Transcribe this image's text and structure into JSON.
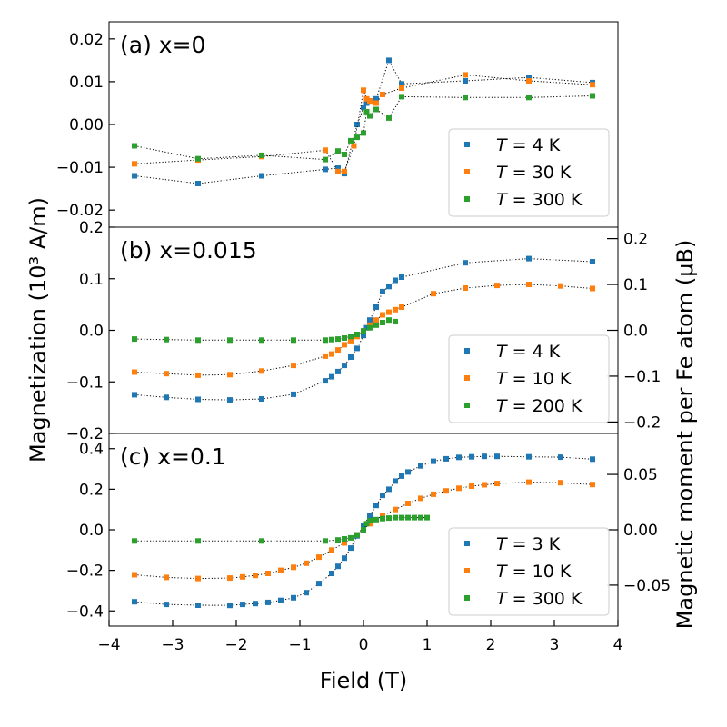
{
  "figure": {
    "ylabel_left": "Magnetization (10³ A/m)",
    "ylabel_right": "Magnetic moment per Fe atom (μB)",
    "xlabel": "Field (T)",
    "x_ticks": [
      "−4",
      "−3",
      "−2",
      "−1",
      "0",
      "1",
      "2",
      "3",
      "4"
    ],
    "series_colors": [
      "#1f77b4",
      "#ff7f0e",
      "#2ca02c"
    ]
  },
  "chart_data": [
    {
      "type": "scatter",
      "panel_label": "(a) x=0",
      "xlim": [
        -4,
        4
      ],
      "ylim": [
        -0.024,
        0.024
      ],
      "y_ticks": [
        -0.02,
        -0.01,
        0.0,
        0.01,
        0.02
      ],
      "y_tick_labels": [
        "−0.02",
        "−0.01",
        "0.00",
        "0.01",
        "0.02"
      ],
      "legend_position": "lower-right",
      "series": [
        {
          "name": "T = 4 K",
          "legend_T": "4 K",
          "x": [
            -3.6,
            -2.6,
            -1.6,
            -0.6,
            -0.4,
            -0.3,
            -0.1,
            0.0,
            0.05,
            0.1,
            0.2,
            0.4,
            0.6,
            1.6,
            2.6,
            3.6
          ],
          "y": [
            -0.012,
            -0.0138,
            -0.012,
            -0.0105,
            -0.0102,
            -0.0115,
            0.0,
            0.004,
            0.005,
            0.0055,
            0.006,
            0.015,
            0.0095,
            0.0102,
            0.011,
            0.0098
          ]
        },
        {
          "name": "T = 30 K",
          "legend_T": "30 K",
          "x": [
            -3.6,
            -2.6,
            -1.6,
            -0.6,
            -0.4,
            -0.3,
            -0.15,
            0.0,
            0.05,
            0.1,
            0.2,
            0.3,
            0.6,
            1.6,
            2.6,
            3.6
          ],
          "y": [
            -0.0092,
            -0.0083,
            -0.0075,
            -0.006,
            -0.011,
            -0.011,
            -0.005,
            0.008,
            0.006,
            0.0055,
            0.005,
            0.007,
            0.0085,
            0.0116,
            0.0102,
            0.0093
          ]
        },
        {
          "name": "T = 300 K",
          "legend_T": "300 K",
          "x": [
            -3.6,
            -2.6,
            -1.6,
            -0.6,
            -0.4,
            -0.3,
            -0.2,
            -0.1,
            0.0,
            0.05,
            0.1,
            0.2,
            0.4,
            0.6,
            1.6,
            2.6,
            3.6
          ],
          "y": [
            -0.005,
            -0.008,
            -0.0072,
            -0.0082,
            -0.0062,
            -0.007,
            -0.0038,
            -0.003,
            -0.002,
            0.003,
            0.002,
            0.0035,
            0.0015,
            0.0065,
            0.0063,
            0.0063,
            0.0067
          ]
        }
      ]
    },
    {
      "type": "scatter",
      "panel_label": "(b) x=0.015",
      "xlim": [
        -4,
        4
      ],
      "ylim": [
        -0.2,
        0.2
      ],
      "y_ticks": [
        -0.2,
        -0.1,
        0.0,
        0.1,
        0.2
      ],
      "y_tick_labels": [
        "−0.2",
        "−0.1",
        "0.0",
        "0.1",
        "0.2"
      ],
      "right_ylim": [
        -0.225,
        0.225
      ],
      "right_ticks": [
        -0.2,
        -0.1,
        0.0,
        0.1,
        0.2
      ],
      "right_tick_labels": [
        "−0.2",
        "−0.1",
        "0.0",
        "0.1",
        "0.2"
      ],
      "legend_position": "lower-right",
      "series": [
        {
          "name": "T = 4 K",
          "legend_T": "4 K",
          "x": [
            -3.6,
            -3.1,
            -2.6,
            -2.1,
            -1.6,
            -1.1,
            -0.6,
            -0.5,
            -0.4,
            -0.3,
            -0.2,
            -0.1,
            0.0,
            0.05,
            0.1,
            0.2,
            0.3,
            0.4,
            0.5,
            0.6,
            1.6,
            2.6,
            3.6
          ],
          "y": [
            -0.125,
            -0.13,
            -0.134,
            -0.135,
            -0.133,
            -0.124,
            -0.098,
            -0.09,
            -0.08,
            -0.068,
            -0.052,
            -0.035,
            -0.01,
            0.005,
            0.02,
            0.045,
            0.075,
            0.085,
            0.097,
            0.103,
            0.131,
            0.139,
            0.133
          ]
        },
        {
          "name": "T = 10 K",
          "legend_T": "10 K",
          "x": [
            -3.6,
            -3.1,
            -2.6,
            -2.1,
            -1.6,
            -1.1,
            -0.6,
            -0.5,
            -0.4,
            -0.3,
            -0.2,
            -0.1,
            0.0,
            0.1,
            0.2,
            0.3,
            0.4,
            0.5,
            0.6,
            1.1,
            1.6,
            2.1,
            2.6,
            3.1,
            3.6
          ],
          "y": [
            -0.081,
            -0.084,
            -0.087,
            -0.086,
            -0.079,
            -0.068,
            -0.05,
            -0.046,
            -0.038,
            -0.028,
            -0.02,
            -0.012,
            -0.002,
            0.01,
            0.02,
            0.03,
            0.035,
            0.04,
            0.045,
            0.071,
            0.082,
            0.087,
            0.089,
            0.086,
            0.081
          ]
        },
        {
          "name": "T = 200 K",
          "legend_T": "200 K",
          "x": [
            -3.6,
            -3.1,
            -2.6,
            -2.1,
            -1.6,
            -1.1,
            -0.6,
            -0.5,
            -0.4,
            -0.3,
            -0.2,
            -0.1,
            0.0,
            0.1,
            0.2,
            0.3,
            0.4,
            0.5
          ],
          "y": [
            -0.017,
            -0.018,
            -0.019,
            -0.019,
            -0.019,
            -0.019,
            -0.019,
            -0.018,
            -0.017,
            -0.015,
            -0.012,
            -0.008,
            -0.001,
            0.005,
            0.01,
            0.015,
            0.02,
            0.017
          ]
        }
      ]
    },
    {
      "type": "scatter",
      "panel_label": "(c) x=0.1",
      "xlim": [
        -4,
        4
      ],
      "ylim": [
        -0.475,
        0.475
      ],
      "y_ticks": [
        -0.4,
        -0.2,
        0.0,
        0.2,
        0.4
      ],
      "y_tick_labels": [
        "−0.4",
        "−0.2",
        "0.0",
        "0.2",
        "0.4"
      ],
      "right_ylim": [
        -0.087,
        0.087
      ],
      "right_ticks": [
        -0.05,
        0.0,
        0.05
      ],
      "right_tick_labels": [
        "−0.05",
        "0.00",
        "0.05"
      ],
      "legend_position": "lower-right",
      "series": [
        {
          "name": "T = 3 K",
          "legend_T": "3 K",
          "x": [
            -3.6,
            -3.1,
            -2.6,
            -2.1,
            -1.9,
            -1.7,
            -1.5,
            -1.3,
            -1.1,
            -0.9,
            -0.7,
            -0.5,
            -0.4,
            -0.3,
            -0.2,
            -0.1,
            0.0,
            0.1,
            0.2,
            0.3,
            0.4,
            0.5,
            0.6,
            0.7,
            0.9,
            1.1,
            1.3,
            1.5,
            1.7,
            1.9,
            2.1,
            2.6,
            3.1,
            3.6
          ],
          "y": [
            -0.355,
            -0.368,
            -0.372,
            -0.373,
            -0.368,
            -0.364,
            -0.358,
            -0.348,
            -0.335,
            -0.31,
            -0.265,
            -0.215,
            -0.18,
            -0.14,
            -0.09,
            -0.03,
            0.02,
            0.07,
            0.12,
            0.17,
            0.2,
            0.24,
            0.265,
            0.285,
            0.315,
            0.338,
            0.35,
            0.357,
            0.36,
            0.362,
            0.362,
            0.36,
            0.358,
            0.348
          ]
        },
        {
          "name": "T = 10 K",
          "legend_T": "10 K",
          "x": [
            -3.6,
            -3.1,
            -2.6,
            -2.1,
            -1.9,
            -1.7,
            -1.5,
            -1.3,
            -1.1,
            -0.9,
            -0.7,
            -0.5,
            -0.3,
            -0.1,
            0.0,
            0.1,
            0.3,
            0.5,
            0.7,
            0.9,
            1.1,
            1.3,
            1.5,
            1.7,
            1.9,
            2.1,
            2.6,
            3.1,
            3.6
          ],
          "y": [
            -0.222,
            -0.235,
            -0.24,
            -0.238,
            -0.232,
            -0.225,
            -0.215,
            -0.2,
            -0.185,
            -0.165,
            -0.135,
            -0.1,
            -0.065,
            -0.025,
            0.0,
            0.03,
            0.07,
            0.1,
            0.13,
            0.155,
            0.175,
            0.192,
            0.205,
            0.215,
            0.222,
            0.228,
            0.235,
            0.232,
            0.223
          ]
        },
        {
          "name": "T = 300 K",
          "legend_T": "300 K",
          "x": [
            -3.6,
            -2.6,
            -1.6,
            -0.6,
            -0.4,
            -0.3,
            -0.2,
            -0.1,
            0.0,
            0.05,
            0.1,
            0.2,
            0.3,
            0.4,
            0.5,
            0.6,
            0.7,
            0.8,
            0.9,
            1.0
          ],
          "y": [
            -0.055,
            -0.055,
            -0.055,
            -0.055,
            -0.05,
            -0.045,
            -0.04,
            -0.025,
            0.0,
            0.03,
            0.045,
            0.05,
            0.055,
            0.058,
            0.06,
            0.06,
            0.06,
            0.06,
            0.06,
            0.06
          ]
        }
      ]
    }
  ]
}
